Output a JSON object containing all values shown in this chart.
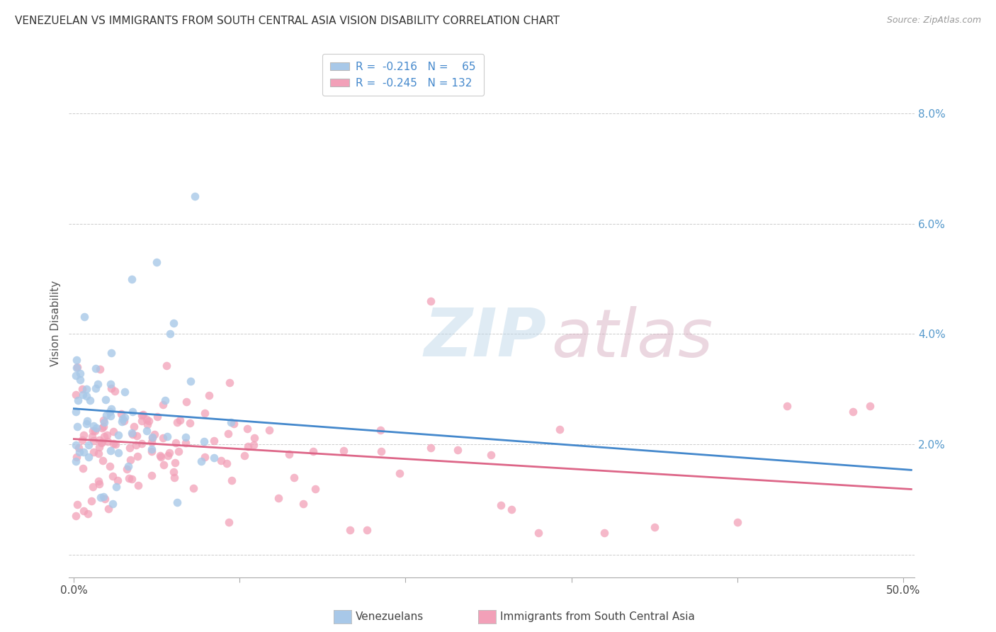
{
  "title": "VENEZUELAN VS IMMIGRANTS FROM SOUTH CENTRAL ASIA VISION DISABILITY CORRELATION CHART",
  "source": "Source: ZipAtlas.com",
  "ylabel": "Vision Disability",
  "yticks": [
    0.0,
    0.02,
    0.04,
    0.06,
    0.08
  ],
  "ytick_labels": [
    "",
    "2.0%",
    "4.0%",
    "6.0%",
    "8.0%"
  ],
  "xlim": [
    -0.003,
    0.507
  ],
  "ylim": [
    -0.004,
    0.088
  ],
  "color_blue": "#a8c8e8",
  "color_pink": "#f2a0b8",
  "line_color_blue": "#4488cc",
  "line_color_pink": "#dd6688",
  "group1_label": "Venezuelans",
  "group2_label": "Immigrants from South Central Asia",
  "blue_intercept": 0.0265,
  "blue_slope": -0.022,
  "pink_intercept": 0.021,
  "pink_slope": -0.018,
  "ven_seed": 7,
  "imm_seed": 13
}
